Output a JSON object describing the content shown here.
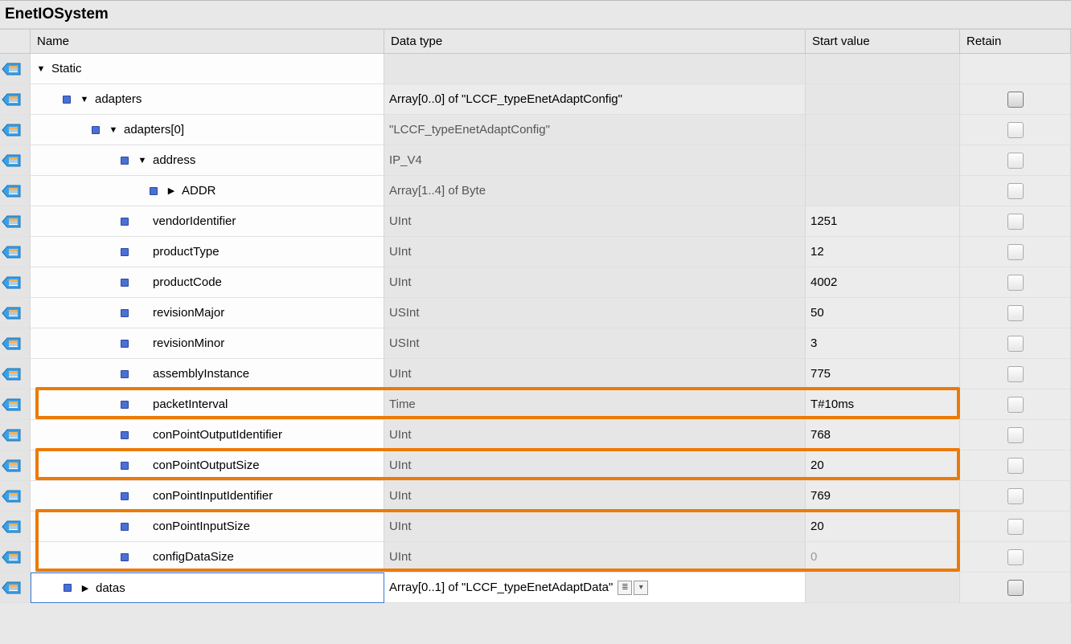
{
  "title": "EnetIOSystem",
  "columns": {
    "name": "Name",
    "type": "Data type",
    "start": "Start value",
    "retain": "Retain"
  },
  "highlight_color": "#ec7a08",
  "rows": [
    {
      "indent": 1,
      "expand": "down",
      "bullet": false,
      "name": "Static",
      "type": "",
      "start": "",
      "retain": "none",
      "typeRO": true,
      "startRO": true
    },
    {
      "indent": 2,
      "expand": "down",
      "bullet": true,
      "name": "adapters",
      "type": "Array[0..0] of \"LCCF_typeEnetAdaptConfig\"",
      "start": "",
      "retain": "bold",
      "typeRO": false,
      "startRO": true
    },
    {
      "indent": 3,
      "expand": "down",
      "bullet": true,
      "name": "adapters[0]",
      "type": "\"LCCF_typeEnetAdaptConfig\"",
      "start": "",
      "retain": "chk",
      "typeRO": true,
      "startRO": true
    },
    {
      "indent": 4,
      "expand": "down",
      "bullet": true,
      "name": "address",
      "type": "IP_V4",
      "start": "",
      "retain": "chk",
      "typeRO": true,
      "startRO": true
    },
    {
      "indent": 5,
      "expand": "right",
      "bullet": true,
      "name": "ADDR",
      "type": "Array[1..4] of Byte",
      "start": "",
      "retain": "chk",
      "typeRO": true,
      "startRO": true
    },
    {
      "indent": 4,
      "expand": "none",
      "bullet": true,
      "name": "vendorIdentifier",
      "type": "UInt",
      "start": "1251",
      "retain": "chk",
      "typeRO": true,
      "startRO": false
    },
    {
      "indent": 4,
      "expand": "none",
      "bullet": true,
      "name": "productType",
      "type": "UInt",
      "start": "12",
      "retain": "chk",
      "typeRO": true,
      "startRO": false
    },
    {
      "indent": 4,
      "expand": "none",
      "bullet": true,
      "name": "productCode",
      "type": "UInt",
      "start": "4002",
      "retain": "chk",
      "typeRO": true,
      "startRO": false
    },
    {
      "indent": 4,
      "expand": "none",
      "bullet": true,
      "name": "revisionMajor",
      "type": "USInt",
      "start": "50",
      "retain": "chk",
      "typeRO": true,
      "startRO": false
    },
    {
      "indent": 4,
      "expand": "none",
      "bullet": true,
      "name": "revisionMinor",
      "type": "USInt",
      "start": "3",
      "retain": "chk",
      "typeRO": true,
      "startRO": false
    },
    {
      "indent": 4,
      "expand": "none",
      "bullet": true,
      "name": "assemblyInstance",
      "type": "UInt",
      "start": "775",
      "retain": "chk",
      "typeRO": true,
      "startRO": false
    },
    {
      "indent": 4,
      "expand": "none",
      "bullet": true,
      "name": "packetInterval",
      "type": "Time",
      "start": "T#10ms",
      "retain": "chk",
      "typeRO": true,
      "startRO": false,
      "hl": "top"
    },
    {
      "indent": 4,
      "expand": "none",
      "bullet": true,
      "name": "conPointOutputIdentifier",
      "type": "UInt",
      "start": "768",
      "retain": "chk",
      "typeRO": true,
      "startRO": false
    },
    {
      "indent": 4,
      "expand": "none",
      "bullet": true,
      "name": "conPointOutputSize",
      "type": "UInt",
      "start": "20",
      "retain": "chk",
      "typeRO": true,
      "startRO": false,
      "hl": "single"
    },
    {
      "indent": 4,
      "expand": "none",
      "bullet": true,
      "name": "conPointInputIdentifier",
      "type": "UInt",
      "start": "769",
      "retain": "chk",
      "typeRO": true,
      "startRO": false
    },
    {
      "indent": 4,
      "expand": "none",
      "bullet": true,
      "name": "conPointInputSize",
      "type": "UInt",
      "start": "20",
      "retain": "chk",
      "typeRO": true,
      "startRO": false,
      "hl": "pairtop"
    },
    {
      "indent": 4,
      "expand": "none",
      "bullet": true,
      "name": "configDataSize",
      "type": "UInt",
      "start": "0",
      "retain": "chk",
      "typeRO": true,
      "startRO": false,
      "startFaint": true,
      "hl": "pairbot"
    },
    {
      "indent": 2,
      "expand": "right",
      "bullet": true,
      "name": "datas",
      "type": "Array[0..1] of \"LCCF_typeEnetAdaptData\"",
      "start": "",
      "retain": "bold",
      "typeRO": false,
      "startRO": true,
      "selected": true,
      "dropdown": true
    }
  ],
  "highlights": [
    {
      "top_row": 11,
      "rows": 1
    },
    {
      "top_row": 13,
      "rows": 1
    },
    {
      "top_row": 15,
      "rows": 2
    }
  ]
}
